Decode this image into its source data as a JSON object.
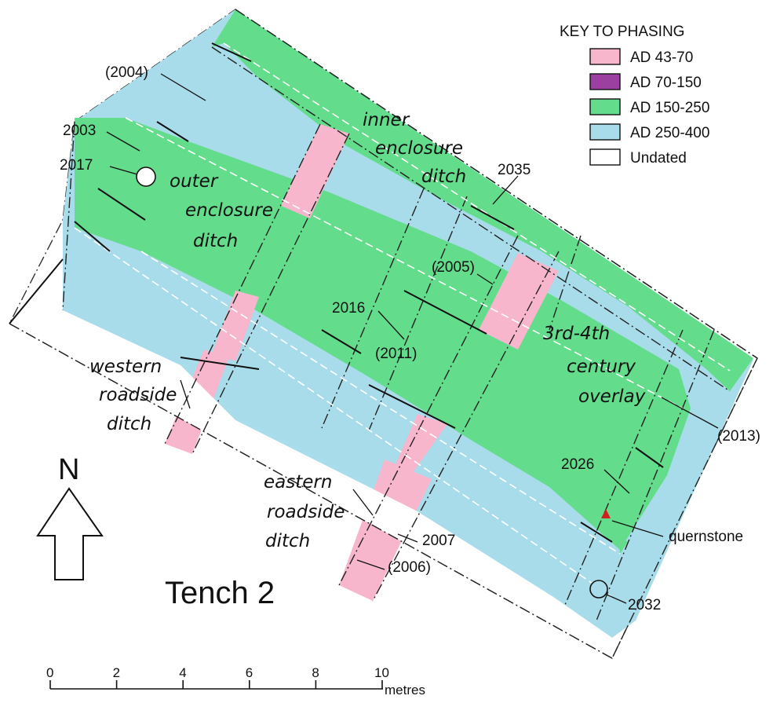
{
  "trench_title": "Tench 2",
  "north_label": "N",
  "legend": {
    "title": "KEY TO PHASING",
    "items": [
      {
        "label": "AD 43-70",
        "color": "#f7b6cc"
      },
      {
        "label": "AD 70-150",
        "color": "#9b3fa0"
      },
      {
        "label": "AD 150-250",
        "color": "#63dc8c"
      },
      {
        "label": "AD 250-400",
        "color": "#a9dcea"
      },
      {
        "label": "Undated",
        "color": "#ffffff"
      }
    ]
  },
  "features": {
    "inner_1": "inner",
    "inner_2": "enclosure",
    "inner_3": "ditch",
    "outer_1": "outer",
    "outer_2": "enclosure",
    "outer_3": "ditch",
    "western_1": "western",
    "western_2": "roadside",
    "western_3": "ditch",
    "eastern_1": "eastern",
    "eastern_2": "roadside",
    "eastern_3": "ditch",
    "overlay_1": "3rd-4th",
    "overlay_2": "century",
    "overlay_3": "overlay"
  },
  "contexts": {
    "c2004": "(2004)",
    "c2003": "2003",
    "c2017": "2017",
    "c2035": "2035",
    "c2005": "(2005)",
    "c2016": "2016",
    "c2011": "(2011)",
    "c2013": "(2013)",
    "c2026": "2026",
    "quernstone": "quernstone",
    "c2007": "2007",
    "c2006": "(2006)",
    "c2032": "2032"
  },
  "scale": {
    "ticks": [
      "0",
      "2",
      "4",
      "6",
      "8",
      "10"
    ],
    "unit": "metres"
  },
  "colors": {
    "pink": "#f7b6cc",
    "green": "#63dc8c",
    "blue": "#a9dcea",
    "quern": "#d21f1f"
  }
}
